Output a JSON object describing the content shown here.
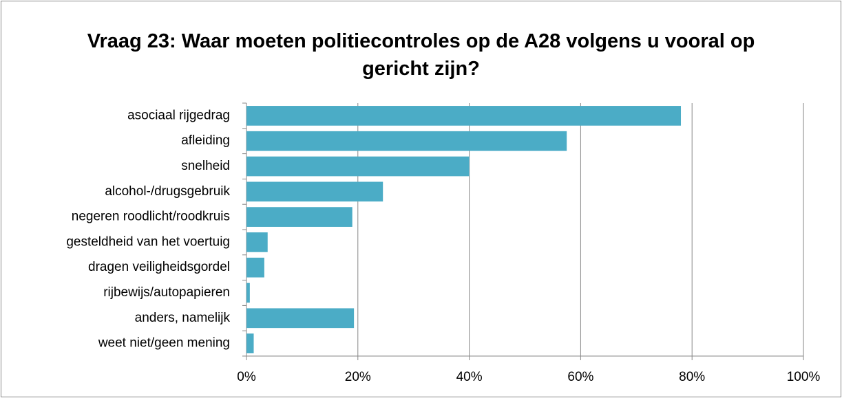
{
  "chart_data": {
    "type": "bar",
    "orientation": "horizontal",
    "title": "Vraag 23: Waar moeten politiecontroles op de A28 volgens u vooral op gericht zijn?",
    "categories": [
      "asociaal rijgedrag",
      "afleiding",
      "snelheid",
      "alcohol-/drugsgebruik",
      "negeren roodlicht/roodkruis",
      "gesteldheid van het voertuig",
      "dragen veiligheidsgordel",
      "rijbewijs/autopapieren",
      "anders, namelijk",
      "weet niet/geen mening"
    ],
    "values": [
      78,
      57.5,
      40,
      24.5,
      19,
      3.8,
      3.2,
      0.6,
      19.3,
      1.3
    ],
    "color": "#4bacc6",
    "xlim": [
      0,
      100
    ],
    "xticks": [
      {
        "value": 0,
        "label": "0%"
      },
      {
        "value": 20,
        "label": "20%"
      },
      {
        "value": 40,
        "label": "40%"
      },
      {
        "value": 60,
        "label": "60%"
      },
      {
        "value": 80,
        "label": "80%"
      },
      {
        "value": 100,
        "label": "100%"
      }
    ],
    "grid": true
  }
}
